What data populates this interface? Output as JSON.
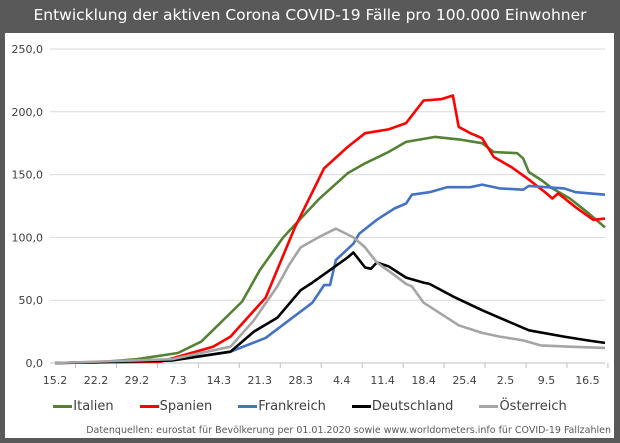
{
  "chart_data": {
    "type": "line",
    "title": "Entwicklung der aktiven Corona COVID-19 Fälle pro 100.000 Einwohner",
    "xlabel": "",
    "ylabel": "",
    "x_unit": "days since 15.2",
    "x_ticks": [
      {
        "day": 0,
        "label": "15.2"
      },
      {
        "day": 7,
        "label": "22.2"
      },
      {
        "day": 14,
        "label": "29.2"
      },
      {
        "day": 21,
        "label": "7.3"
      },
      {
        "day": 28,
        "label": "14.3"
      },
      {
        "day": 35,
        "label": "21.3"
      },
      {
        "day": 42,
        "label": "28.3"
      },
      {
        "day": 49,
        "label": "4.4"
      },
      {
        "day": 56,
        "label": "11.4"
      },
      {
        "day": 63,
        "label": "18.4"
      },
      {
        "day": 70,
        "label": "25.4"
      },
      {
        "day": 77,
        "label": "2.5"
      },
      {
        "day": 84,
        "label": "9.5"
      },
      {
        "day": 91,
        "label": "16.5"
      }
    ],
    "xlim": [
      0,
      94
    ],
    "ylim": [
      0,
      250
    ],
    "y_ticks": [
      {
        "value": 0,
        "label": "0,0"
      },
      {
        "value": 50,
        "label": "50,0"
      },
      {
        "value": 100,
        "label": "100,0"
      },
      {
        "value": 150,
        "label": "150,0"
      },
      {
        "value": 200,
        "label": "200,0"
      },
      {
        "value": 250,
        "label": "250,0"
      }
    ],
    "grid": true,
    "legend_position": "bottom",
    "series": [
      {
        "name": "Italien",
        "color": "#548235",
        "points": [
          [
            0,
            0
          ],
          [
            7,
            0.5
          ],
          [
            14,
            3
          ],
          [
            21,
            8
          ],
          [
            25,
            17
          ],
          [
            32,
            49
          ],
          [
            35,
            74
          ],
          [
            39,
            100
          ],
          [
            43,
            120
          ],
          [
            45,
            130
          ],
          [
            50,
            151
          ],
          [
            53,
            159
          ],
          [
            57,
            168
          ],
          [
            60,
            176
          ],
          [
            65,
            180
          ],
          [
            69,
            178
          ],
          [
            73,
            175
          ],
          [
            75,
            168
          ],
          [
            79,
            167
          ],
          [
            80,
            163
          ],
          [
            81,
            152
          ],
          [
            83,
            146
          ],
          [
            85,
            139
          ],
          [
            88,
            131
          ],
          [
            91,
            120
          ],
          [
            94,
            108
          ]
        ]
      },
      {
        "name": "Spanien",
        "color": "#ff0000",
        "points": [
          [
            0,
            0
          ],
          [
            18,
            1
          ],
          [
            27,
            13
          ],
          [
            30,
            21
          ],
          [
            36,
            52
          ],
          [
            41,
            108
          ],
          [
            46,
            155
          ],
          [
            50,
            172
          ],
          [
            53,
            183
          ],
          [
            57,
            186
          ],
          [
            60,
            191
          ],
          [
            63,
            209
          ],
          [
            66,
            210
          ],
          [
            68,
            213
          ],
          [
            69,
            188
          ],
          [
            71,
            183
          ],
          [
            73,
            179
          ],
          [
            75,
            164
          ],
          [
            78,
            156
          ],
          [
            81,
            146
          ],
          [
            84,
            135
          ],
          [
            85,
            131
          ],
          [
            86,
            135
          ],
          [
            89,
            124
          ],
          [
            92,
            114
          ],
          [
            94,
            115
          ]
        ]
      },
      {
        "name": "Frankreich",
        "color": "#4472c4",
        "points": [
          [
            0,
            0
          ],
          [
            20,
            2
          ],
          [
            30,
            9
          ],
          [
            36,
            20
          ],
          [
            40,
            34
          ],
          [
            44,
            48
          ],
          [
            46,
            62
          ],
          [
            47,
            62
          ],
          [
            48,
            82
          ],
          [
            51,
            95
          ],
          [
            52,
            103
          ],
          [
            55,
            114
          ],
          [
            58,
            123
          ],
          [
            60,
            127
          ],
          [
            61,
            134
          ],
          [
            64,
            136
          ],
          [
            67,
            140
          ],
          [
            71,
            140
          ],
          [
            73,
            142
          ],
          [
            76,
            139
          ],
          [
            80,
            138
          ],
          [
            81,
            141
          ],
          [
            84,
            140
          ],
          [
            87,
            139
          ],
          [
            89,
            136
          ],
          [
            94,
            134
          ]
        ]
      },
      {
        "name": "Deutschland",
        "color": "#000000",
        "points": [
          [
            0,
            0
          ],
          [
            20,
            2
          ],
          [
            30,
            9
          ],
          [
            34,
            25
          ],
          [
            38,
            36
          ],
          [
            42,
            58
          ],
          [
            44,
            64
          ],
          [
            47,
            74
          ],
          [
            50,
            84
          ],
          [
            51,
            88
          ],
          [
            53,
            76
          ],
          [
            54,
            75
          ],
          [
            55,
            80
          ],
          [
            57,
            77
          ],
          [
            60,
            68
          ],
          [
            63,
            64
          ],
          [
            64,
            63
          ],
          [
            68,
            53
          ],
          [
            73,
            42
          ],
          [
            76,
            36
          ],
          [
            81,
            26
          ],
          [
            87,
            21
          ],
          [
            91,
            18
          ],
          [
            94,
            16
          ]
        ]
      },
      {
        "name": "Österreich",
        "color": "#a5a5a5",
        "points": [
          [
            0,
            0
          ],
          [
            20,
            3
          ],
          [
            30,
            13
          ],
          [
            34,
            34
          ],
          [
            38,
            61
          ],
          [
            40,
            78
          ],
          [
            42,
            92
          ],
          [
            45,
            100
          ],
          [
            48,
            107
          ],
          [
            51,
            100
          ],
          [
            53,
            92
          ],
          [
            55,
            80
          ],
          [
            58,
            70
          ],
          [
            60,
            63
          ],
          [
            61,
            61
          ],
          [
            63,
            48
          ],
          [
            65,
            42
          ],
          [
            69,
            30
          ],
          [
            73,
            24
          ],
          [
            76,
            21
          ],
          [
            80,
            18
          ],
          [
            83,
            14
          ],
          [
            88,
            13
          ],
          [
            94,
            12
          ]
        ]
      }
    ],
    "source": "Datenquellen: eurostat für Bevölkerung per 01.01.2020 sowie www.worldometers.info für COVID-19 Fallzahlen"
  }
}
